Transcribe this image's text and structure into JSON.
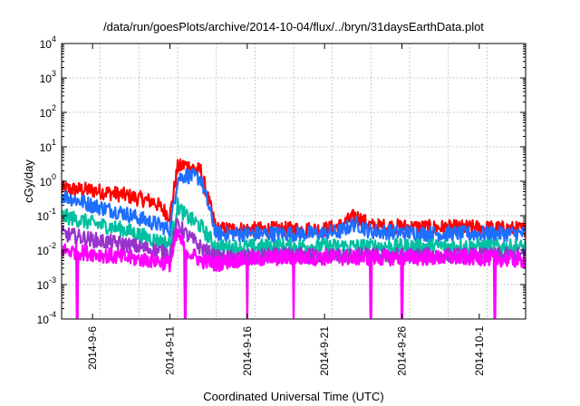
{
  "chart_data": {
    "type": "line",
    "title": "/data/run/goesPlots/archive/2014-10-04/flux/../bryn/31daysEarthData.plot",
    "xlabel": "Coordinated Universal Time (UTC)",
    "ylabel": "cGy/day",
    "yscale": "log",
    "ylim": [
      0.0001,
      10000
    ],
    "xlim": [
      "2014-09-04",
      "2014-10-04"
    ],
    "grid": true,
    "y_ticks": [
      {
        "base": "10",
        "exp": "-4"
      },
      {
        "base": "10",
        "exp": "-3"
      },
      {
        "base": "10",
        "exp": "-2"
      },
      {
        "base": "10",
        "exp": "-1"
      },
      {
        "base": "10",
        "exp": "0"
      },
      {
        "base": "10",
        "exp": "1"
      },
      {
        "base": "10",
        "exp": "2"
      },
      {
        "base": "10",
        "exp": "3"
      },
      {
        "base": "10",
        "exp": "4"
      }
    ],
    "x_ticks": [
      "2014-9-6",
      "2014-9-11",
      "2014-9-16",
      "2014-9-21",
      "2014-9-26",
      "2014-10-1"
    ],
    "x_tick_dates": [
      "2014-09-06",
      "2014-09-11",
      "2014-09-16",
      "2014-09-21",
      "2014-09-26",
      "2014-10-01"
    ],
    "series": [
      {
        "color": "#ff0000",
        "x": [
          "2014-09-04",
          "2014-09-06",
          "2014-09-08",
          "2014-09-10",
          "2014-09-11",
          "2014-09-11T12",
          "2014-09-12",
          "2014-09-13",
          "2014-09-14",
          "2014-09-15",
          "2014-09-18",
          "2014-09-21",
          "2014-09-22",
          "2014-09-23",
          "2014-09-24",
          "2014-09-28",
          "2014-10-01",
          "2014-10-04"
        ],
        "y": [
          0.6,
          0.55,
          0.4,
          0.25,
          0.1,
          2.5,
          3.0,
          2.0,
          0.04,
          0.04,
          0.04,
          0.04,
          0.05,
          0.1,
          0.05,
          0.045,
          0.045,
          0.04
        ]
      },
      {
        "color": "#1f6fff",
        "x": [
          "2014-09-04",
          "2014-09-06",
          "2014-09-08",
          "2014-09-10",
          "2014-09-11",
          "2014-09-11T12",
          "2014-09-12",
          "2014-09-13",
          "2014-09-14",
          "2014-09-15",
          "2014-09-18",
          "2014-09-21",
          "2014-09-22",
          "2014-09-23",
          "2014-09-24",
          "2014-09-28",
          "2014-10-01",
          "2014-10-04"
        ],
        "y": [
          0.4,
          0.2,
          0.12,
          0.06,
          0.04,
          1.2,
          1.5,
          1.2,
          0.03,
          0.03,
          0.03,
          0.03,
          0.035,
          0.06,
          0.035,
          0.03,
          0.03,
          0.03
        ]
      },
      {
        "color": "#00c0a0",
        "x": [
          "2014-09-04",
          "2014-09-06",
          "2014-09-08",
          "2014-09-10",
          "2014-09-11",
          "2014-09-11T12",
          "2014-09-12",
          "2014-09-13",
          "2014-09-14",
          "2014-09-15",
          "2014-09-18",
          "2014-09-21",
          "2014-09-24",
          "2014-09-28",
          "2014-10-01",
          "2014-10-04"
        ],
        "y": [
          0.1,
          0.06,
          0.04,
          0.02,
          0.015,
          0.2,
          0.1,
          0.05,
          0.012,
          0.012,
          0.013,
          0.013,
          0.013,
          0.013,
          0.013,
          0.012
        ]
      },
      {
        "color": "#9933cc",
        "x": [
          "2014-09-04",
          "2014-09-06",
          "2014-09-08",
          "2014-09-10",
          "2014-09-11",
          "2014-09-11T12",
          "2014-09-12",
          "2014-09-13",
          "2014-09-14",
          "2014-09-15",
          "2014-09-18",
          "2014-09-21",
          "2014-09-24",
          "2014-09-28",
          "2014-10-01",
          "2014-10-04"
        ],
        "y": [
          0.03,
          0.02,
          0.015,
          0.01,
          0.008,
          0.06,
          0.03,
          0.012,
          0.006,
          0.006,
          0.007,
          0.007,
          0.007,
          0.007,
          0.007,
          0.007
        ]
      },
      {
        "color": "#ff00ff",
        "x": [
          "2014-09-04",
          "2014-09-06",
          "2014-09-08",
          "2014-09-10",
          "2014-09-11",
          "2014-09-11T12",
          "2014-09-12",
          "2014-09-13",
          "2014-09-14",
          "2014-09-15",
          "2014-09-18",
          "2014-09-21",
          "2014-09-24",
          "2014-09-28",
          "2014-10-01",
          "2014-10-04"
        ],
        "y": [
          0.01,
          0.008,
          0.006,
          0.005,
          0.004,
          0.03,
          0.01,
          0.005,
          0.004,
          0.005,
          0.006,
          0.006,
          0.006,
          0.006,
          0.006,
          0.005
        ]
      }
    ],
    "dropouts": [
      "2014-09-05",
      "2014-09-12",
      "2014-09-16",
      "2014-09-19",
      "2014-09-24",
      "2014-09-26",
      "2014-10-02"
    ]
  }
}
